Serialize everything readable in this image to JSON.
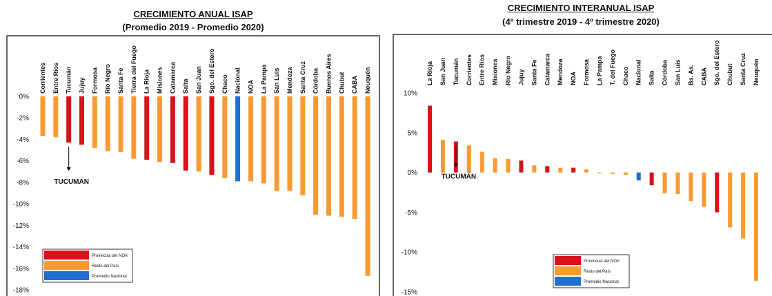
{
  "palette": {
    "noa_province": "#d9111a",
    "rest_country": "#fb9a32",
    "national_avg": "#1f6ed0"
  },
  "legend_labels": [
    "Provincias del NOA",
    "Resto del País",
    "Promedio Nacional"
  ],
  "chart_data": [
    {
      "type": "bar",
      "title": "CRECIMIENTO ANUAL ISAP",
      "subtitle": "(Promedio 2019 - Promedio 2020)",
      "xlabel": "",
      "ylabel": "",
      "ylim": [
        -18,
        0
      ],
      "y_ticks": [
        0,
        -2,
        -4,
        -6,
        -8,
        -10,
        -12,
        -14,
        -16,
        -18
      ],
      "tick_suffix": "%",
      "grid": false,
      "legend_position": "bottom-left",
      "annotation": {
        "text": "TUCUMÁN",
        "category": "Tucumán"
      },
      "categories": [
        "Corrientes",
        "Entre Ríos",
        "Tucumán",
        "Jujuy",
        "Formosa",
        "Río Negro",
        "Santa Fe",
        "Tierra del Fuego",
        "La Rioja",
        "Misiones",
        "Catamarca",
        "Salta",
        "San Juan",
        "Sgo. del Estero",
        "Chaco",
        "Nacional",
        "NOA",
        "La Pampa",
        "San Luis",
        "Mendoza",
        "Santa Cruz",
        "Córdoba",
        "Buenos Aires",
        "Chubut",
        "CABA",
        "Neuquén"
      ],
      "values": [
        -3.7,
        -3.8,
        -4.3,
        -4.5,
        -4.8,
        -5.1,
        -5.2,
        -5.8,
        -5.9,
        -6.1,
        -6.2,
        -6.9,
        -7.0,
        -7.3,
        -7.6,
        -7.9,
        -7.9,
        -8.1,
        -8.8,
        -8.8,
        -9.2,
        -11.0,
        -11.1,
        -11.2,
        -11.4,
        -16.7
      ],
      "groups": [
        "rest",
        "rest",
        "noa",
        "noa",
        "rest",
        "rest",
        "rest",
        "rest",
        "noa",
        "rest",
        "noa",
        "noa",
        "rest",
        "noa",
        "rest",
        "nat",
        "rest",
        "rest",
        "rest",
        "rest",
        "rest",
        "rest",
        "rest",
        "rest",
        "rest",
        "rest"
      ]
    },
    {
      "type": "bar",
      "title": "CRECIMIENTO INTERANUAL ISAP",
      "subtitle": "(4º trimestre 2019 - 4º trimestre 2020)",
      "xlabel": "",
      "ylabel": "",
      "ylim": [
        -15,
        10
      ],
      "y_ticks": [
        10,
        5,
        0,
        -5,
        -10,
        -15
      ],
      "tick_suffix": "%",
      "grid": false,
      "legend_position": "bottom-center",
      "annotation": {
        "text": "TUCUMÁN",
        "category": "Tucumán"
      },
      "categories": [
        "La Rioja",
        "San Juan",
        "Tucumán",
        "Corrientes",
        "Entre Ríos",
        "Misiones",
        "Río Negro",
        "Jujuy",
        "Santa Fe",
        "Catamarca",
        "Mendoza",
        "NOA",
        "Formosa",
        "La Pampa",
        "T. del Fuego",
        "Chaco",
        "Nacional",
        "Salta",
        "Córdoba",
        "San Luis",
        "Bs. As.",
        "CABA",
        "Sgo. del Estero",
        "Chubut",
        "Santa Cruz",
        "Neuquén"
      ],
      "values": [
        8.4,
        4.1,
        3.9,
        3.4,
        2.6,
        1.8,
        1.7,
        1.5,
        0.9,
        0.8,
        0.6,
        0.6,
        0.4,
        -0.1,
        -0.2,
        -0.3,
        -1.0,
        -1.6,
        -2.6,
        -2.7,
        -3.6,
        -4.3,
        -5.0,
        -6.9,
        -8.3,
        -13.6
      ],
      "groups": [
        "noa",
        "rest",
        "noa",
        "rest",
        "rest",
        "rest",
        "rest",
        "noa",
        "rest",
        "noa",
        "rest",
        "noa",
        "rest",
        "rest",
        "rest",
        "rest",
        "nat",
        "noa",
        "rest",
        "rest",
        "rest",
        "rest",
        "noa",
        "rest",
        "rest",
        "rest"
      ]
    }
  ]
}
